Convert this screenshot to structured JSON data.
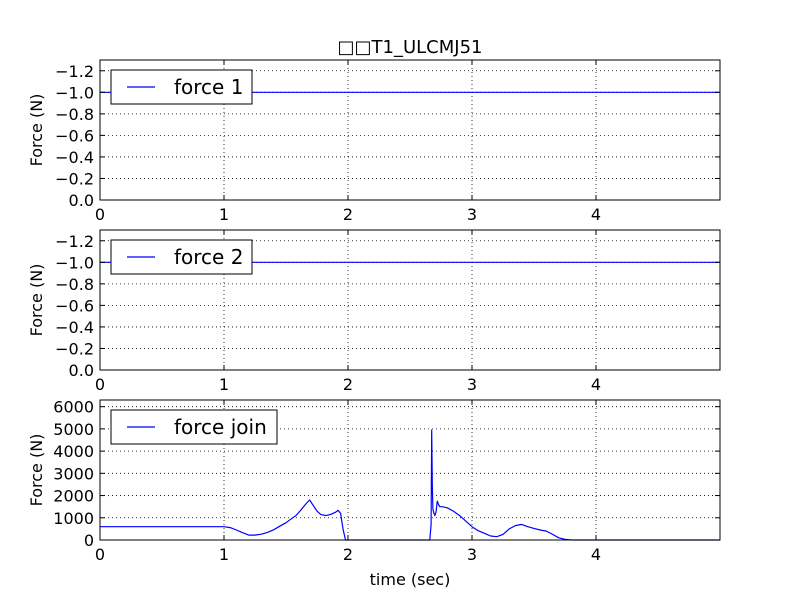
{
  "chart_data": [
    {
      "type": "line",
      "title": "□□T1_ULCMJ51",
      "ylabel": "Force (N)",
      "xlim": [
        0,
        5
      ],
      "ylim": [
        0,
        -1.3
      ],
      "y_inverted": true,
      "x_ticks": [
        "0",
        "1",
        "2",
        "3",
        "4"
      ],
      "y_ticks": [
        "−1.2",
        "−1.0",
        "−0.8",
        "−0.6",
        "−0.4",
        "−0.2",
        "0.0"
      ],
      "y_tick_values": [
        -1.2,
        -1.0,
        -0.8,
        -0.6,
        -0.4,
        -0.2,
        0.0
      ],
      "grid": true,
      "legend_position": "upper-left",
      "series": [
        {
          "name": "force 1",
          "color": "#0000ff",
          "x": [
            0,
            5
          ],
          "y": [
            -1.0,
            -1.0
          ]
        }
      ]
    },
    {
      "type": "line",
      "ylabel": "Force (N)",
      "xlim": [
        0,
        5
      ],
      "ylim": [
        0,
        -1.3
      ],
      "y_inverted": true,
      "x_ticks": [
        "0",
        "1",
        "2",
        "3",
        "4"
      ],
      "y_ticks": [
        "−1.2",
        "−1.0",
        "−0.8",
        "−0.6",
        "−0.4",
        "−0.2",
        "0.0"
      ],
      "y_tick_values": [
        -1.2,
        -1.0,
        -0.8,
        -0.6,
        -0.4,
        -0.2,
        0.0
      ],
      "grid": true,
      "legend_position": "upper-left",
      "series": [
        {
          "name": "force 2",
          "color": "#0000ff",
          "x": [
            0,
            5
          ],
          "y": [
            -1.0,
            -1.0
          ]
        }
      ]
    },
    {
      "type": "line",
      "ylabel": "Force (N)",
      "xlabel": "time (sec)",
      "xlim": [
        0,
        5
      ],
      "ylim": [
        0,
        6300
      ],
      "x_ticks": [
        "0",
        "1",
        "2",
        "3",
        "4"
      ],
      "y_ticks": [
        "0",
        "1000",
        "2000",
        "3000",
        "4000",
        "5000",
        "6000"
      ],
      "y_tick_values": [
        0,
        1000,
        2000,
        3000,
        4000,
        5000,
        6000
      ],
      "grid": true,
      "legend_position": "upper-left",
      "series": [
        {
          "name": "force join",
          "color": "#0000ff",
          "x": [
            0,
            1.0,
            1.05,
            1.1,
            1.15,
            1.2,
            1.25,
            1.3,
            1.35,
            1.4,
            1.45,
            1.5,
            1.55,
            1.58,
            1.62,
            1.66,
            1.69,
            1.72,
            1.75,
            1.78,
            1.82,
            1.86,
            1.9,
            1.92,
            1.94,
            1.96,
            1.98,
            2.0,
            2.3,
            2.6,
            2.66,
            2.67,
            2.675,
            2.68,
            2.685,
            2.69,
            2.7,
            2.71,
            2.72,
            2.73,
            2.74,
            2.76,
            2.8,
            2.85,
            2.9,
            2.95,
            3.0,
            3.05,
            3.1,
            3.15,
            3.2,
            3.25,
            3.3,
            3.35,
            3.4,
            3.45,
            3.5,
            3.55,
            3.6,
            3.65,
            3.7,
            3.75,
            3.8,
            4.0,
            5.0
          ],
          "y": [
            600,
            600,
            560,
            450,
            330,
            220,
            220,
            260,
            340,
            460,
            620,
            780,
            980,
            1100,
            1350,
            1620,
            1800,
            1550,
            1300,
            1150,
            1100,
            1150,
            1250,
            1330,
            1200,
            500,
            0,
            0,
            0,
            0,
            0,
            700,
            4950,
            2500,
            1400,
            1250,
            1100,
            1250,
            1750,
            1600,
            1500,
            1500,
            1450,
            1300,
            1100,
            850,
            600,
            420,
            300,
            180,
            150,
            250,
            500,
            650,
            700,
            600,
            520,
            450,
            400,
            250,
            100,
            30,
            0,
            0,
            0
          ]
        }
      ]
    }
  ]
}
